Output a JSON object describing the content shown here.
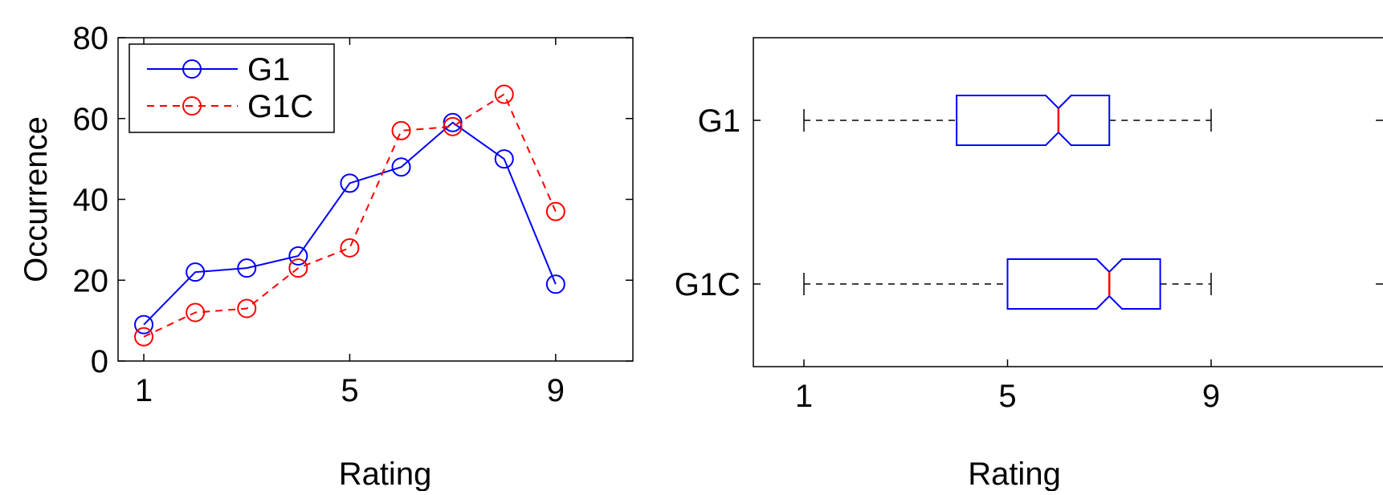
{
  "chart_data": [
    {
      "type": "line",
      "title": "",
      "xlabel": "Rating",
      "ylabel": "Occurrence",
      "xlim": [
        0.5,
        10.5
      ],
      "ylim": [
        0,
        80
      ],
      "xticks": [
        1,
        5,
        9
      ],
      "yticks": [
        0,
        20,
        40,
        60,
        80
      ],
      "legend_position": "top-left",
      "grid": false,
      "x": [
        1,
        2,
        3,
        4,
        5,
        6,
        7,
        8,
        9
      ],
      "series": [
        {
          "name": "G1",
          "color": "#0000ff",
          "linestyle": "solid",
          "marker": "circle",
          "values": [
            9,
            22,
            23,
            26,
            44,
            48,
            59,
            50,
            19
          ]
        },
        {
          "name": "G1C",
          "color": "#ff0000",
          "linestyle": "dashed",
          "marker": "circle",
          "values": [
            6,
            12,
            13,
            23,
            28,
            57,
            58,
            66,
            37
          ]
        }
      ]
    },
    {
      "type": "box",
      "title": "",
      "xlabel": "Rating",
      "ylabel": "",
      "xlim": [
        0,
        10
      ],
      "xticks": [
        1,
        5,
        9
      ],
      "orientation": "horizontal",
      "notched": true,
      "box_color": "#0000ff",
      "median_color": "#ff0000",
      "whisker_style": "dashed",
      "groups": [
        {
          "name": "G1",
          "whisker_low": 1,
          "q1": 4,
          "notch_low": 5.75,
          "median": 6,
          "notch_high": 6.25,
          "q3": 7,
          "whisker_high": 9
        },
        {
          "name": "G1C",
          "whisker_low": 1,
          "q1": 5,
          "notch_low": 6.75,
          "median": 7,
          "notch_high": 7.25,
          "q3": 8,
          "whisker_high": 9
        }
      ]
    }
  ]
}
